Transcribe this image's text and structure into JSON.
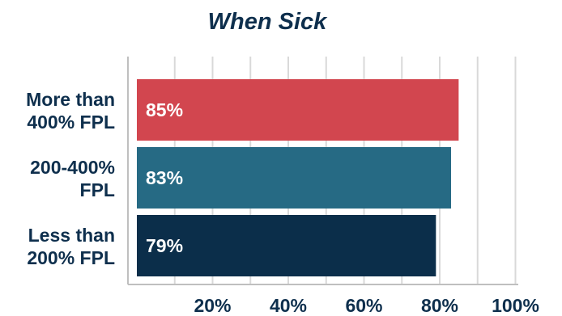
{
  "chart_data": {
    "type": "bar",
    "orientation": "horizontal",
    "title": "When Sick",
    "categories": [
      [
        "More than",
        "400% FPL"
      ],
      [
        "200-400%",
        "FPL"
      ],
      [
        "Less than",
        "200% FPL"
      ]
    ],
    "values": [
      85,
      83,
      79
    ],
    "value_labels": [
      "85%",
      "83%",
      "79%"
    ],
    "bar_colors": [
      "#d2464f",
      "#266a84",
      "#0b2e4a"
    ],
    "xlim": [
      0,
      100
    ],
    "x_ticks": [
      20,
      40,
      60,
      80,
      100
    ],
    "x_tick_labels": [
      "20%",
      "40%",
      "60%",
      "80%",
      "100%"
    ],
    "grid": true,
    "legend": "none"
  }
}
